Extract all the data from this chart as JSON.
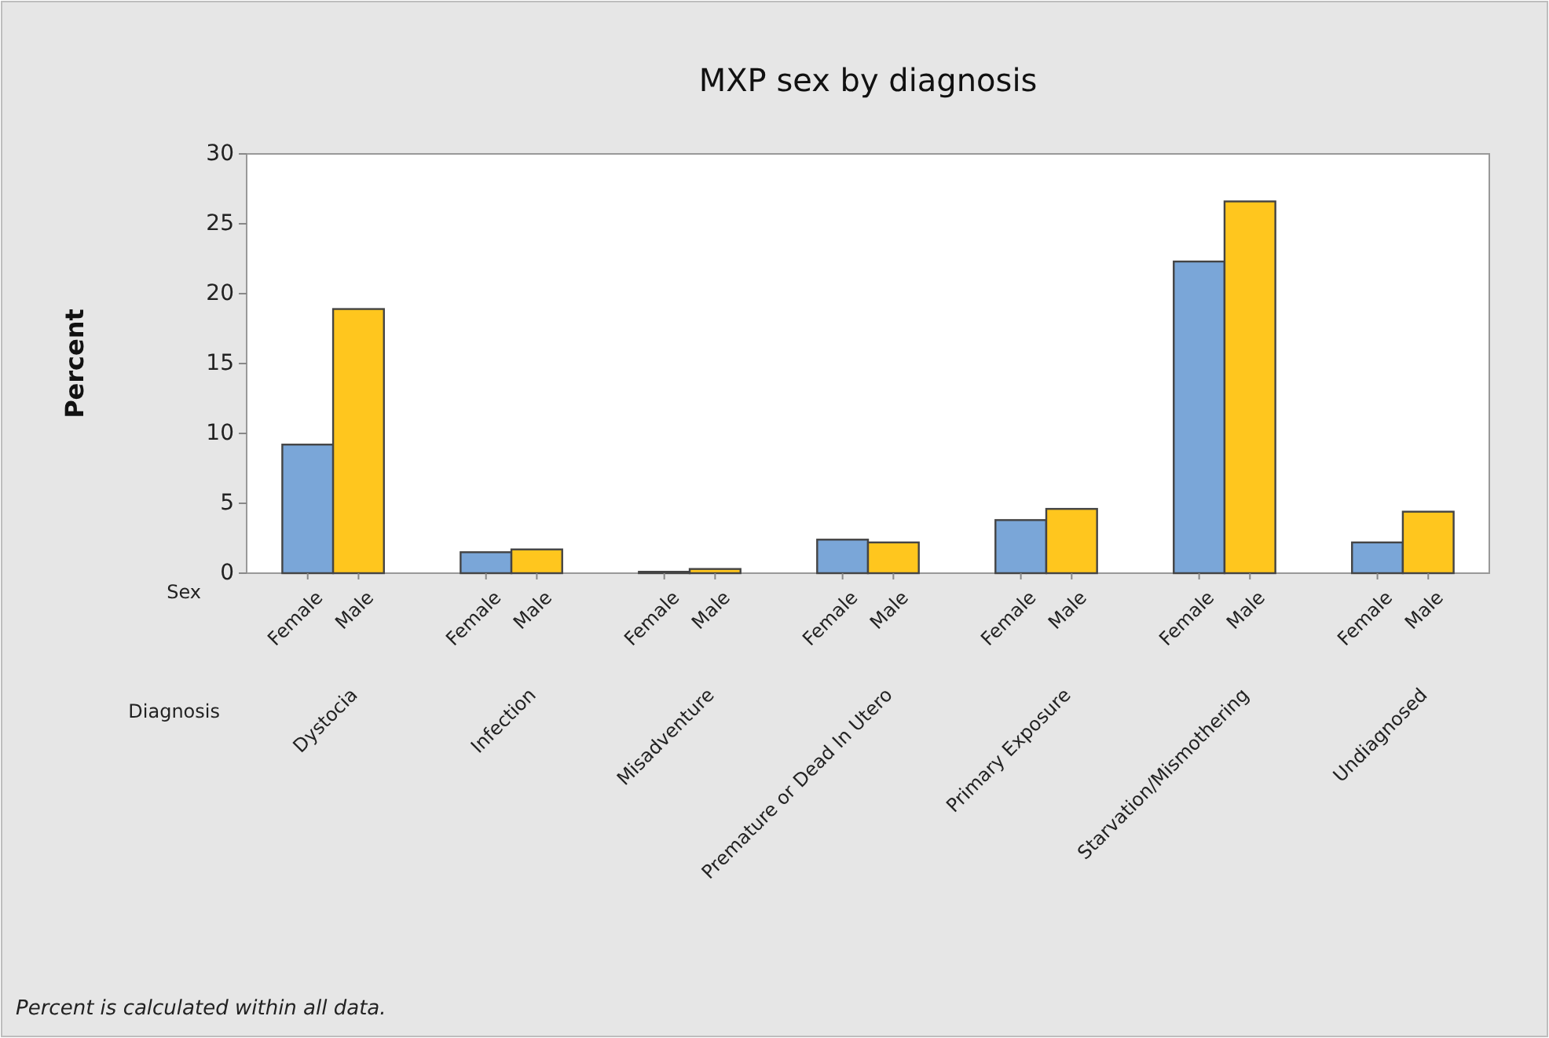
{
  "chart_data": {
    "type": "bar",
    "title": "MXP sex by diagnosis",
    "ylabel": "Percent",
    "xlabel": "Diagnosis",
    "legend_title": "Sex",
    "categories": [
      "Dystocia",
      "Infection",
      "Misadventure",
      "Premature or Dead In Utero",
      "Primary Exposure",
      "Starvation/Mismothering",
      "Undiagnosed"
    ],
    "series": [
      {
        "name": "Female",
        "color": "#7aa6d8",
        "values": [
          9.2,
          1.5,
          0.1,
          2.4,
          3.8,
          22.3,
          2.2
        ]
      },
      {
        "name": "Male",
        "color": "#ffc61e",
        "values": [
          18.9,
          1.7,
          0.3,
          2.2,
          4.6,
          26.6,
          4.4
        ]
      }
    ],
    "ylim": [
      0,
      30
    ],
    "yticks": [
      0,
      5,
      10,
      15,
      20,
      25,
      30
    ],
    "grid": false,
    "annotations": [
      "Percent is calculated within all data."
    ]
  }
}
